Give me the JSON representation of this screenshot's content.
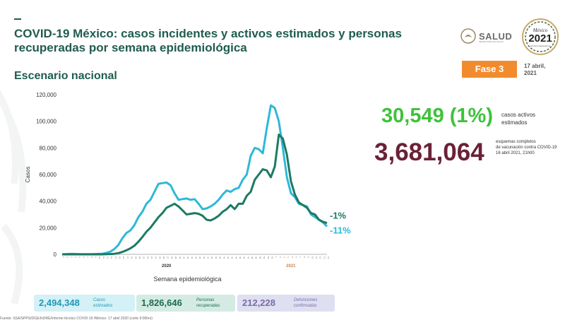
{
  "header": {
    "title": "COVID-19 México: casos incidentes y activos estimados y personas recuperadas por semana epidemiológica",
    "subtitle": "Escenario nacional"
  },
  "logos": {
    "salud_text": "SALUD",
    "salud_sub": "SECRETARÍA DE SALUD",
    "mexico_text": "México",
    "mexico_year": "2021",
    "mexico_sub": "Año de la Independencia"
  },
  "phase_badge": "Fase 3",
  "date_label": [
    "17 abril,",
    "2021"
  ],
  "stats": {
    "active_value": "30,549 (1%)",
    "active_label": [
      "casos activos",
      "estimados"
    ],
    "vaccination_value": "3,681,064",
    "vaccination_label": [
      "esquemas completos",
      "de vacunación contra COVID-19",
      "16 abril 2021, 21h00"
    ]
  },
  "summary": [
    {
      "value": "2,494,348",
      "label": [
        "Casos",
        "estimados"
      ]
    },
    {
      "value": "1,826,646",
      "label": [
        "Personas",
        "recuperadas"
      ]
    },
    {
      "value": "212,228",
      "label": [
        "Defunciones",
        "confirmadas"
      ]
    }
  ],
  "footer": "Fuente: SSA/SPPS/DGE/InDRE/Informe técnico COVID-19 /México- 17 abril 2020 (corte 9:00hrs)",
  "colors": {
    "series_estimated": "#2eb8d8",
    "series_recovered": "#1b7a63",
    "title": "#1f5c4f",
    "active": "#3ec23b",
    "vaccination": "#6b2137",
    "phase": "#f28b2e"
  },
  "chart_data": {
    "type": "line",
    "xlabel": "Semana epidemiológica",
    "ylabel": "Casos",
    "ylim": [
      0,
      120000
    ],
    "yticks": [
      0,
      20000,
      40000,
      60000,
      80000,
      100000,
      120000
    ],
    "ytick_labels": [
      "0",
      "20,000",
      "40,000",
      "60,000",
      "80,000",
      "100,000",
      "120,000"
    ],
    "year_labels": [
      {
        "label": "2020",
        "week_index": 26
      },
      {
        "label": "2021",
        "week_index": 57
      }
    ],
    "x": [
      1,
      2,
      3,
      4,
      5,
      6,
      7,
      8,
      9,
      10,
      11,
      12,
      13,
      14,
      15,
      16,
      17,
      18,
      19,
      20,
      21,
      22,
      23,
      24,
      25,
      26,
      27,
      28,
      29,
      30,
      31,
      32,
      33,
      34,
      35,
      36,
      37,
      38,
      39,
      40,
      41,
      42,
      43,
      44,
      45,
      46,
      47,
      48,
      49,
      50,
      51,
      52,
      53,
      1,
      2,
      3,
      4,
      5,
      6,
      7,
      8,
      9,
      10,
      11,
      12,
      13,
      14
    ],
    "grid": false,
    "series": [
      {
        "values": [
          0,
          200,
          300,
          300,
          200,
          100,
          100,
          100,
          200,
          300,
          500,
          1000,
          2000,
          4000,
          7000,
          12000,
          16000,
          18000,
          22000,
          28000,
          32000,
          38000,
          41000,
          47000,
          53000,
          53500,
          54000,
          52000,
          46000,
          41000,
          41500,
          42000,
          41000,
          41500,
          38000,
          34000,
          34500,
          36000,
          38000,
          41000,
          45000,
          48000,
          47000,
          49000,
          50000,
          56000,
          60000,
          74000,
          80000,
          79000,
          76000,
          95000,
          112000,
          110000,
          100000,
          80000,
          58000,
          46000,
          43000,
          38000,
          37000,
          36000,
          30000,
          28000,
          26000,
          24000,
          21000
        ],
        "end_label": "-11%"
      },
      {
        "values": [
          0,
          0,
          0,
          0,
          0,
          0,
          0,
          0,
          0,
          0,
          0,
          100,
          200,
          400,
          900,
          1800,
          3000,
          4500,
          6500,
          9500,
          13000,
          17000,
          20000,
          24000,
          28000,
          31000,
          35000,
          36500,
          38000,
          36000,
          33000,
          30000,
          30500,
          31000,
          30500,
          29000,
          26000,
          25500,
          27000,
          29000,
          32000,
          34000,
          37000,
          34000,
          38000,
          38000,
          44000,
          47000,
          56000,
          60000,
          64000,
          63000,
          58000,
          66000,
          90000,
          87000,
          75000,
          55000,
          45000,
          39000,
          37000,
          35000,
          31000,
          30000,
          26000,
          24500,
          23500
        ],
        "end_label": "-1%"
      }
    ]
  }
}
